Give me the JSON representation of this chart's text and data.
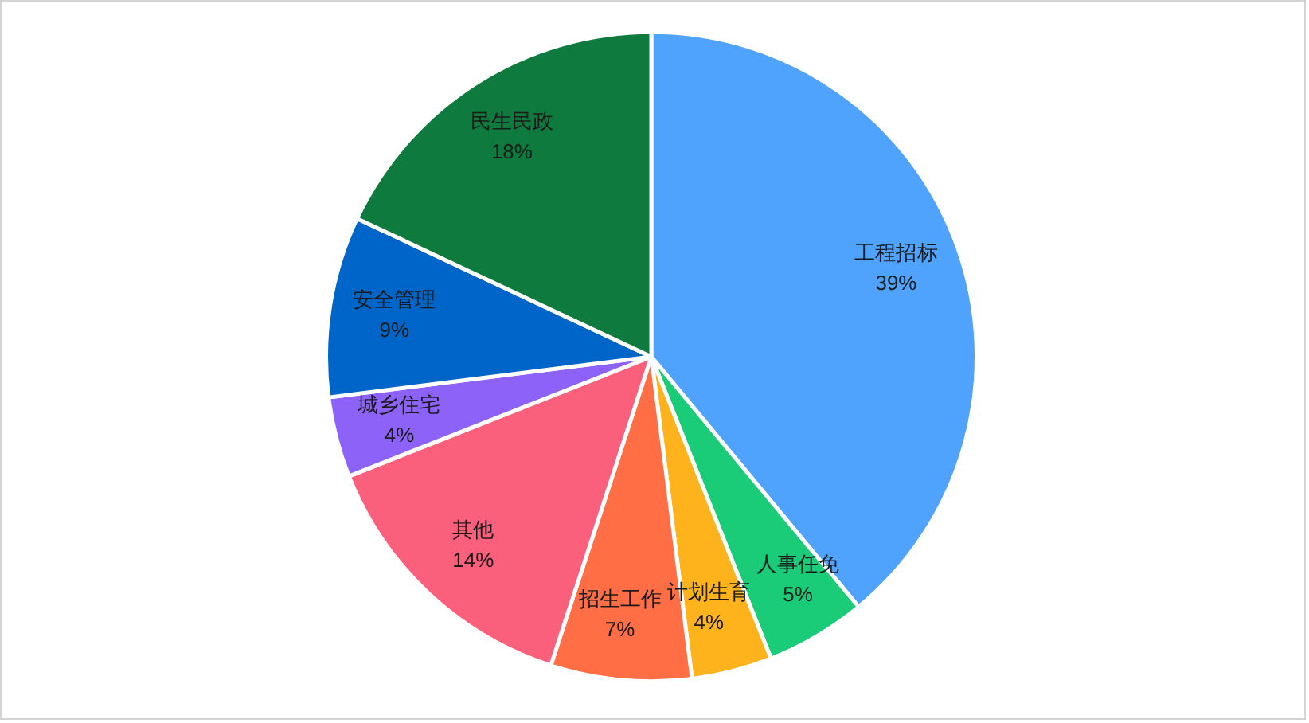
{
  "chart_data": {
    "type": "pie",
    "categories": [
      "工程招标",
      "人事任免",
      "计划生育",
      "招生工作",
      "其他",
      "城乡住宅",
      "安全管理",
      "民生民政"
    ],
    "values": [
      39,
      5,
      4,
      7,
      14,
      4,
      9,
      18
    ],
    "value_labels": [
      "39%",
      "5%",
      "4%",
      "7%",
      "14%",
      "4%",
      "9%",
      "18%"
    ],
    "colors": [
      "#4fa3fd",
      "#1acb78",
      "#feb31c",
      "#ff6e45",
      "#fa5f7c",
      "#8c62f8",
      "#0065c8",
      "#0f7a3e"
    ]
  }
}
